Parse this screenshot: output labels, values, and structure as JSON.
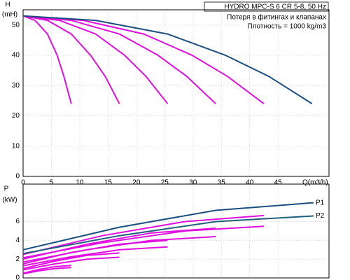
{
  "chart_data": [
    {
      "type": "line",
      "title": "HYDRO MPC-S 6 CR 5-8, 50 Hz",
      "subtitle": [
        "Потеря в фитингах и клапанах",
        "Плотность = 1000 kg/m3"
      ],
      "y_label": [
        "H",
        "(mH)"
      ],
      "x_label": "Q(m3/h)",
      "xlim": [
        0,
        54
      ],
      "ylim": [
        0,
        55
      ],
      "xticks": [
        0,
        5,
        10,
        15,
        20,
        25,
        30,
        35,
        40,
        45
      ],
      "yticks": [
        0,
        10,
        20,
        30,
        40,
        50
      ],
      "grid": true,
      "series": [
        {
          "color": "#e010e0",
          "x": [
            0,
            2.1,
            4.3,
            6,
            7.2,
            8.5
          ],
          "values": [
            53,
            51.5,
            47,
            40,
            33,
            24
          ]
        },
        {
          "color": "#e010e0",
          "x": [
            0,
            4.3,
            8.5,
            11.9,
            14.5,
            17
          ],
          "values": [
            53,
            51.5,
            47,
            40,
            33,
            24
          ]
        },
        {
          "color": "#e010e0",
          "x": [
            0,
            6.4,
            12.8,
            17.9,
            21.7,
            25.5
          ],
          "values": [
            53,
            51.5,
            47,
            40,
            33,
            24
          ]
        },
        {
          "color": "#e010e0",
          "x": [
            0,
            8.5,
            17,
            23.8,
            28.9,
            34
          ],
          "values": [
            53,
            51.5,
            47,
            40,
            33,
            24
          ]
        },
        {
          "color": "#e010e0",
          "x": [
            0,
            10.6,
            21.3,
            29.8,
            36.1,
            42.5
          ],
          "values": [
            53,
            51.5,
            47,
            40,
            33,
            24
          ]
        },
        {
          "color": "#1a4f80",
          "x": [
            0,
            12.8,
            25.5,
            35.7,
            43.4,
            51
          ],
          "values": [
            53,
            51.5,
            47,
            40,
            33,
            24
          ]
        }
      ]
    },
    {
      "type": "line",
      "y_label": [
        "P",
        "(kW)"
      ],
      "xlim": [
        0,
        54
      ],
      "ylim": [
        0,
        10
      ],
      "yticks": [
        0,
        2,
        4,
        6
      ],
      "grid": true,
      "series": [
        {
          "color": "#e010e0",
          "x": [
            0,
            2.8,
            5.7,
            8.5
          ],
          "values": [
            0.5,
            0.9,
            1.2,
            1.33
          ]
        },
        {
          "color": "#e010e0",
          "x": [
            0,
            2.8,
            5.7,
            8.5
          ],
          "values": [
            0.43,
            0.75,
            1,
            1.1
          ]
        },
        {
          "color": "#e010e0",
          "x": [
            0,
            5.7,
            11.3,
            17
          ],
          "values": [
            1,
            1.8,
            2.4,
            2.66
          ]
        },
        {
          "color": "#e010e0",
          "x": [
            0,
            5.7,
            11.3,
            17
          ],
          "values": [
            0.86,
            1.5,
            2,
            2.2
          ]
        },
        {
          "color": "#e010e0",
          "x": [
            0,
            8.4,
            17.1,
            25.5
          ],
          "values": [
            1.5,
            2.7,
            3.6,
            4
          ]
        },
        {
          "color": "#e010e0",
          "x": [
            0,
            8.4,
            17.1,
            25.5
          ],
          "values": [
            1.3,
            2.25,
            3,
            3.3
          ]
        },
        {
          "color": "#e010e0",
          "x": [
            0,
            11.3,
            22.7,
            34
          ],
          "values": [
            2,
            3.6,
            4.8,
            5.3
          ]
        },
        {
          "color": "#e010e0",
          "x": [
            0,
            11.3,
            22.7,
            34
          ],
          "values": [
            1.7,
            3,
            4,
            4.4
          ]
        },
        {
          "color": "#e010e0",
          "x": [
            0,
            14,
            28.5,
            42.5
          ],
          "values": [
            2.5,
            4.5,
            6,
            6.65
          ]
        },
        {
          "color": "#e010e0",
          "x": [
            0,
            14,
            28.5,
            42.5
          ],
          "values": [
            2.15,
            3.75,
            5,
            5.5
          ]
        },
        {
          "name": "P1",
          "color": "#1a4f80",
          "x": [
            0,
            17,
            34,
            51
          ],
          "values": [
            3,
            5.4,
            7.2,
            8
          ]
        },
        {
          "name": "P2",
          "color": "#1f5f7a",
          "x": [
            0,
            17,
            34,
            51
          ],
          "values": [
            2.6,
            4.5,
            6,
            6.6
          ]
        }
      ]
    }
  ]
}
